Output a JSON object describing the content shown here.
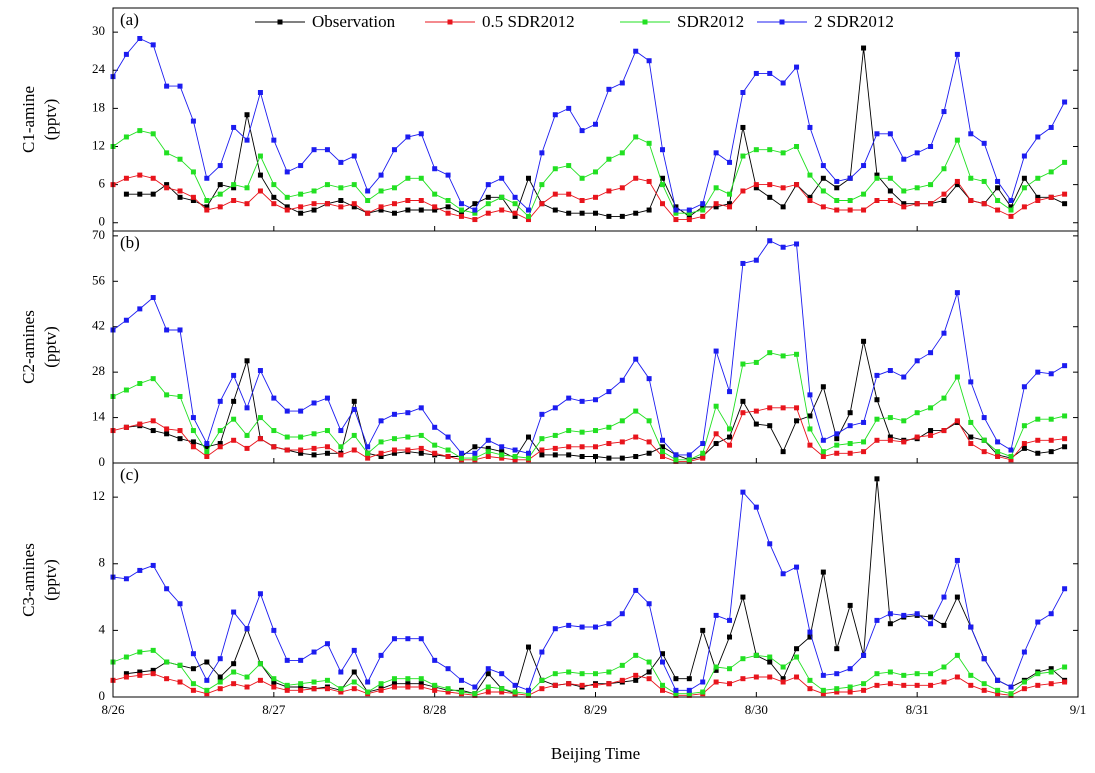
{
  "chart_data": [
    {
      "type": "line",
      "panel_label": "(a)",
      "ylabel": [
        "C1-amine",
        "(pptv)"
      ],
      "x": [
        0,
        2,
        4,
        6,
        8,
        10,
        12,
        14,
        16,
        18,
        20,
        22,
        24,
        26,
        28,
        30,
        32,
        34,
        36,
        38,
        40,
        42,
        44,
        46,
        48,
        50,
        52,
        54,
        56,
        58,
        60,
        62,
        64,
        66,
        68,
        70,
        72,
        74,
        76,
        78,
        80,
        82,
        84,
        86,
        88,
        90,
        92,
        94,
        96,
        98,
        100,
        102,
        104,
        106,
        108,
        110,
        112,
        114,
        116,
        118,
        120,
        122,
        124,
        126,
        128,
        130,
        132,
        134,
        136,
        138,
        140,
        142
      ],
      "xlim": [
        0,
        144
      ],
      "xticks": [
        0,
        24,
        48,
        72,
        96,
        120,
        144
      ],
      "ylim": [
        -1.3,
        33.8
      ],
      "yticks": [
        0,
        6,
        12,
        18,
        24,
        30
      ],
      "series": [
        {
          "name": "Observation",
          "color": "#000000",
          "values": [
            null,
            4.5,
            4.5,
            4.5,
            6,
            4,
            3.5,
            2.5,
            6,
            5.5,
            17,
            7.5,
            4,
            2.5,
            1.5,
            2,
            3,
            3.5,
            2.5,
            1.5,
            2,
            1.5,
            2,
            2,
            2,
            2.5,
            1.5,
            3,
            4,
            4,
            1,
            7,
            3,
            2,
            1.5,
            1.5,
            1.5,
            1,
            1,
            1.5,
            2,
            7,
            2.5,
            1,
            2.5,
            2.5,
            3,
            15,
            5.5,
            4,
            2.5,
            6,
            4,
            7,
            5.5,
            7,
            27.5,
            7.5,
            5,
            3,
            3,
            3,
            3.5,
            6,
            3.5,
            3,
            5.5,
            2.5,
            7,
            4,
            4,
            3
          ]
        },
        {
          "name": "0.5 SDR2012",
          "color": "#e8141c",
          "values": [
            6,
            7,
            7.5,
            7,
            5.5,
            5,
            4,
            2,
            2.5,
            3.5,
            3,
            5,
            3,
            2,
            2.5,
            3,
            3,
            2.5,
            3,
            1.5,
            2.5,
            3,
            3.5,
            3.5,
            2.5,
            1.5,
            1,
            0.5,
            1.5,
            2,
            1.5,
            0.5,
            3,
            4.5,
            4.5,
            3.5,
            4,
            5,
            5.5,
            7,
            6.5,
            3,
            0.5,
            0.5,
            1,
            3,
            2.5,
            5,
            6,
            6,
            5.5,
            6,
            3.5,
            2.5,
            2,
            2,
            2,
            3.5,
            3.5,
            2.5,
            3,
            3,
            4.5,
            6.5,
            3.5,
            3,
            2,
            1,
            2.5,
            3.5,
            4,
            4.5
          ]
        },
        {
          "name": "SDR2012",
          "color": "#22e022",
          "values": [
            12,
            13.5,
            14.5,
            14,
            11,
            10,
            8,
            3.5,
            4.5,
            6,
            5.5,
            10.5,
            6,
            4,
            4.5,
            5,
            6,
            5.5,
            6,
            3.5,
            5,
            5.5,
            7,
            7,
            4.5,
            3.5,
            2,
            1.5,
            3,
            4,
            3,
            1,
            6,
            8.5,
            9,
            7,
            8,
            10,
            11,
            13.5,
            12.5,
            6,
            1.5,
            1.5,
            2,
            5.5,
            4.5,
            10.5,
            11.5,
            11.5,
            11,
            12,
            7.5,
            5,
            3.5,
            3.5,
            4.5,
            7,
            7,
            5,
            5.5,
            6,
            8.5,
            13,
            7,
            6.5,
            3.5,
            2,
            5.5,
            7,
            8,
            9.5
          ]
        },
        {
          "name": "2 SDR2012",
          "color": "#1c1cf0",
          "values": [
            23,
            26.5,
            29,
            28,
            21.5,
            21.5,
            16,
            7,
            9,
            15,
            13,
            20.5,
            13,
            8,
            9,
            11.5,
            11.5,
            9.5,
            10.5,
            5,
            7.5,
            11.5,
            13.5,
            14,
            8.5,
            7.5,
            3,
            2,
            6,
            7,
            4,
            2,
            11,
            17,
            18,
            14.5,
            15.5,
            21,
            22,
            27,
            25.5,
            11.5,
            2,
            2,
            3,
            11,
            9.5,
            20.5,
            23.5,
            23.5,
            22,
            24.5,
            15,
            9,
            6.5,
            7,
            9,
            14,
            14,
            10,
            11,
            12,
            17.5,
            26.5,
            14,
            12.5,
            6.5,
            3.5,
            10.5,
            13.5,
            15,
            19
          ]
        }
      ]
    },
    {
      "type": "line",
      "panel_label": "(b)",
      "ylabel": [
        "C2-amines",
        "(pptv)"
      ],
      "x": [
        0,
        2,
        4,
        6,
        8,
        10,
        12,
        14,
        16,
        18,
        20,
        22,
        24,
        26,
        28,
        30,
        32,
        34,
        36,
        38,
        40,
        42,
        44,
        46,
        48,
        50,
        52,
        54,
        56,
        58,
        60,
        62,
        64,
        66,
        68,
        70,
        72,
        74,
        76,
        78,
        80,
        82,
        84,
        86,
        88,
        90,
        92,
        94,
        96,
        98,
        100,
        102,
        104,
        106,
        108,
        110,
        112,
        114,
        116,
        118,
        120,
        122,
        124,
        126,
        128,
        130,
        132,
        134,
        136,
        138,
        140,
        142
      ],
      "xlim": [
        0,
        144
      ],
      "xticks": [
        0,
        24,
        48,
        72,
        96,
        120,
        144
      ],
      "ylim": [
        0,
        71.5
      ],
      "yticks": [
        0,
        14,
        28,
        42,
        56,
        70
      ],
      "series": [
        {
          "color": "#000000",
          "values": [
            null,
            11,
            11.5,
            10,
            9,
            7.5,
            6.5,
            5,
            6,
            19,
            31.5,
            7.5,
            5,
            4,
            3,
            2.5,
            3,
            3,
            19,
            3,
            2,
            3,
            3.5,
            3,
            2.5,
            2,
            2,
            5,
            4.5,
            3.5,
            1.5,
            8,
            2.5,
            2.5,
            2.5,
            2,
            2,
            1.5,
            1.5,
            2,
            3,
            5,
            2.5,
            1,
            2,
            6,
            8,
            19,
            12,
            11.5,
            3.5,
            13,
            14.5,
            23.5,
            7.5,
            15.5,
            37.5,
            19.5,
            8,
            7,
            7.5,
            10,
            10,
            12.5,
            8,
            7,
            2.5,
            1.5,
            4.5,
            3,
            3.5,
            5
          ]
        },
        {
          "color": "#e8141c",
          "values": [
            10,
            11,
            12,
            13,
            10.5,
            10,
            5,
            2,
            5,
            7,
            4.5,
            7.5,
            5,
            4,
            4,
            4.5,
            5,
            2.5,
            4,
            1.5,
            3,
            4,
            4,
            4.5,
            3,
            2,
            1,
            1,
            2,
            1.5,
            1,
            1,
            4,
            4.5,
            5,
            5,
            5,
            6,
            6.5,
            8,
            6.5,
            2,
            0.5,
            0.5,
            1.5,
            9,
            5.5,
            15.5,
            16,
            17,
            17,
            17,
            5.5,
            2,
            3,
            3,
            3.5,
            7,
            7,
            6.5,
            8,
            8.5,
            10,
            13,
            6,
            3.5,
            2,
            1,
            6,
            7,
            7,
            7.5
          ]
        },
        {
          "color": "#22e022",
          "values": [
            20.5,
            22.5,
            24.5,
            26,
            21,
            20.5,
            10,
            3.5,
            10,
            13.5,
            8.5,
            14,
            10,
            8,
            8,
            9,
            10,
            5,
            8.5,
            3,
            6.5,
            7.5,
            8,
            8.5,
            5.5,
            4,
            1.5,
            1.5,
            3.5,
            2.5,
            2,
            1.5,
            7.5,
            8.5,
            10,
            9.5,
            10,
            11,
            13,
            16,
            13,
            3.5,
            1,
            1,
            3,
            17.5,
            10.5,
            30.5,
            31,
            34,
            33,
            33.5,
            10.5,
            3.5,
            5.5,
            6,
            6.5,
            13.5,
            14,
            13,
            15.5,
            17,
            20,
            26.5,
            12.5,
            7,
            3.5,
            2,
            11.5,
            13.5,
            13.5,
            14.5
          ]
        },
        {
          "color": "#1c1cf0",
          "values": [
            41,
            44,
            47.5,
            51,
            41,
            41,
            14,
            6,
            19,
            27,
            17,
            28.5,
            20,
            16,
            16,
            18.5,
            20,
            10,
            16.5,
            5,
            13,
            15,
            15.5,
            17,
            11,
            8,
            3,
            3,
            7,
            5,
            4,
            3,
            15,
            17,
            20,
            19,
            19.5,
            22,
            25.5,
            32,
            26,
            7,
            2.5,
            2.5,
            6,
            34.5,
            22,
            61.5,
            62.5,
            68.5,
            66.5,
            67.5,
            21,
            7,
            9,
            11.5,
            12.5,
            27,
            28.5,
            26.5,
            31.5,
            34,
            40,
            52.5,
            25,
            14,
            6.5,
            4,
            23.5,
            28,
            27.5,
            30
          ]
        }
      ]
    },
    {
      "type": "line",
      "panel_label": "(c)",
      "ylabel": [
        "C3-amines",
        "(pptv)"
      ],
      "xlabel": "Beijing Time",
      "x": [
        0,
        2,
        4,
        6,
        8,
        10,
        12,
        14,
        16,
        18,
        20,
        22,
        24,
        26,
        28,
        30,
        32,
        34,
        36,
        38,
        40,
        42,
        44,
        46,
        48,
        50,
        52,
        54,
        56,
        58,
        60,
        62,
        64,
        66,
        68,
        70,
        72,
        74,
        76,
        78,
        80,
        82,
        84,
        86,
        88,
        90,
        92,
        94,
        96,
        98,
        100,
        102,
        104,
        106,
        108,
        110,
        112,
        114,
        116,
        118,
        120,
        122,
        124,
        126,
        128,
        130,
        132,
        134,
        136,
        138,
        140,
        142
      ],
      "xlim": [
        0,
        144
      ],
      "xticks": [
        {
          "value": 0,
          "label": "8/26"
        },
        {
          "value": 24,
          "label": "8/27"
        },
        {
          "value": 48,
          "label": "8/28"
        },
        {
          "value": 72,
          "label": "8/29"
        },
        {
          "value": 96,
          "label": "8/30"
        },
        {
          "value": 120,
          "label": "8/31"
        },
        {
          "value": 144,
          "label": "9/1"
        }
      ],
      "ylim": [
        0,
        14.05
      ],
      "yticks": [
        0,
        4,
        8,
        12
      ],
      "series": [
        {
          "color": "#000000",
          "values": [
            null,
            1.4,
            1.5,
            1.6,
            2.1,
            1.9,
            1.7,
            2.1,
            1.2,
            2.0,
            4.1,
            2.0,
            0.9,
            0.6,
            0.6,
            0.5,
            0.6,
            0.4,
            1.5,
            0.3,
            0.5,
            0.8,
            0.8,
            0.8,
            0.6,
            0.4,
            0.4,
            0.2,
            1.4,
            0.5,
            0.2,
            3.0,
            1.0,
            0.7,
            0.8,
            0.6,
            0.8,
            0.8,
            0.9,
            1.0,
            1.5,
            2.6,
            1.1,
            1.1,
            4.0,
            1.6,
            3.6,
            6.0,
            2.5,
            2.1,
            1.1,
            2.9,
            3.6,
            7.5,
            2.9,
            5.5,
            2.5,
            13.1,
            4.4,
            4.8,
            4.9,
            4.8,
            4.3,
            6.0,
            4.2,
            2.3,
            1.0,
            0.6,
            1.0,
            1.5,
            1.7,
            1.0
          ]
        },
        {
          "color": "#e8141c",
          "values": [
            1.0,
            1.2,
            1.3,
            1.4,
            1.1,
            0.9,
            0.4,
            0.2,
            0.5,
            0.8,
            0.6,
            1.0,
            0.6,
            0.4,
            0.4,
            0.5,
            0.5,
            0.3,
            0.5,
            0.2,
            0.4,
            0.6,
            0.6,
            0.6,
            0.4,
            0.3,
            0.2,
            0.1,
            0.3,
            0.3,
            0.2,
            0.1,
            0.5,
            0.7,
            0.8,
            0.7,
            0.7,
            0.8,
            1.0,
            1.3,
            1.1,
            0.4,
            0.1,
            0.1,
            0.2,
            0.9,
            0.8,
            1.1,
            1.2,
            1.2,
            0.9,
            1.2,
            0.5,
            0.2,
            0.3,
            0.3,
            0.4,
            0.7,
            0.8,
            0.7,
            0.7,
            0.7,
            0.9,
            1.2,
            0.7,
            0.4,
            0.2,
            0.1,
            0.5,
            0.7,
            0.8,
            0.9
          ]
        },
        {
          "color": "#22e022",
          "values": [
            2.1,
            2.4,
            2.7,
            2.8,
            2.1,
            1.9,
            0.8,
            0.4,
            0.9,
            1.5,
            1.2,
            2.0,
            1.1,
            0.7,
            0.8,
            0.9,
            1.0,
            0.5,
            0.9,
            0.3,
            0.8,
            1.1,
            1.1,
            1.1,
            0.7,
            0.5,
            0.3,
            0.2,
            0.6,
            0.5,
            0.3,
            0.2,
            1.0,
            1.4,
            1.5,
            1.4,
            1.4,
            1.5,
            1.9,
            2.5,
            2.1,
            0.7,
            0.2,
            0.2,
            0.3,
            1.8,
            1.7,
            2.3,
            2.5,
            2.4,
            1.8,
            2.4,
            1.0,
            0.4,
            0.5,
            0.6,
            0.8,
            1.4,
            1.5,
            1.3,
            1.4,
            1.4,
            1.8,
            2.5,
            1.3,
            0.8,
            0.4,
            0.2,
            0.9,
            1.4,
            1.5,
            1.8
          ]
        },
        {
          "color": "#1c1cf0",
          "values": [
            7.2,
            7.1,
            7.6,
            7.9,
            6.5,
            5.6,
            2.6,
            1.0,
            2.3,
            5.1,
            4.1,
            6.2,
            4.0,
            2.2,
            2.2,
            2.7,
            3.2,
            1.5,
            2.8,
            0.9,
            2.5,
            3.5,
            3.5,
            3.5,
            2.2,
            1.7,
            1.0,
            0.6,
            1.7,
            1.4,
            0.7,
            0.4,
            2.7,
            4.1,
            4.3,
            4.2,
            4.2,
            4.4,
            5.0,
            6.4,
            5.6,
            2.1,
            0.4,
            0.4,
            0.9,
            4.9,
            4.6,
            12.3,
            11.4,
            9.2,
            7.4,
            7.8,
            3.9,
            1.3,
            1.4,
            1.7,
            2.5,
            4.6,
            5.0,
            4.9,
            5.0,
            4.4,
            6.0,
            8.2,
            4.2,
            2.3,
            1.0,
            0.6,
            2.7,
            4.5,
            5.0,
            6.5
          ]
        }
      ]
    }
  ]
}
